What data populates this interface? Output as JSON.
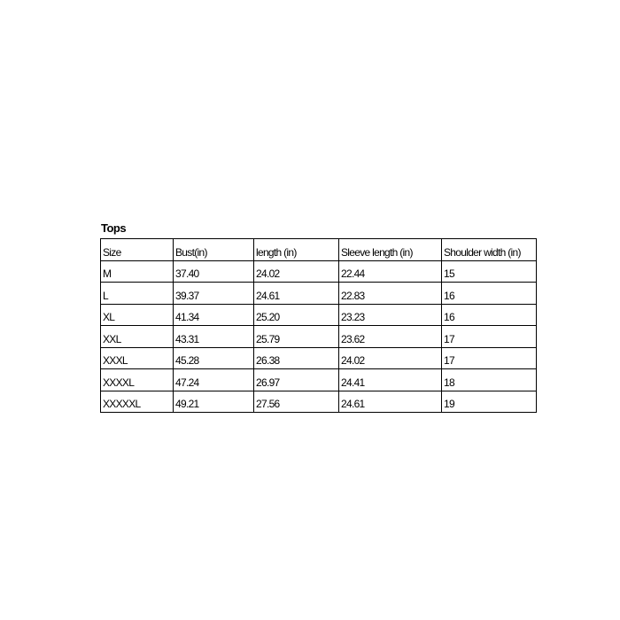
{
  "title": "Tops",
  "table": {
    "header": [
      "Size",
      "Bust(in)",
      "length (in)",
      "Sleeve length (in)",
      "Shoulder width (in)"
    ],
    "rows": [
      [
        "M",
        "37.40",
        "24.02",
        "22.44",
        "15"
      ],
      [
        "L",
        "39.37",
        "24.61",
        "22.83",
        "16"
      ],
      [
        "XL",
        "41.34",
        "25.20",
        "23.23",
        "16"
      ],
      [
        "XXL",
        "43.31",
        "25.79",
        "23.62",
        "17"
      ],
      [
        "XXXL",
        "45.28",
        "26.38",
        "24.02",
        "17"
      ],
      [
        "XXXXL",
        "47.24",
        "26.97",
        "24.41",
        "18"
      ],
      [
        "XXXXXL",
        "49.21",
        "27.56",
        "24.61",
        "19"
      ]
    ]
  }
}
